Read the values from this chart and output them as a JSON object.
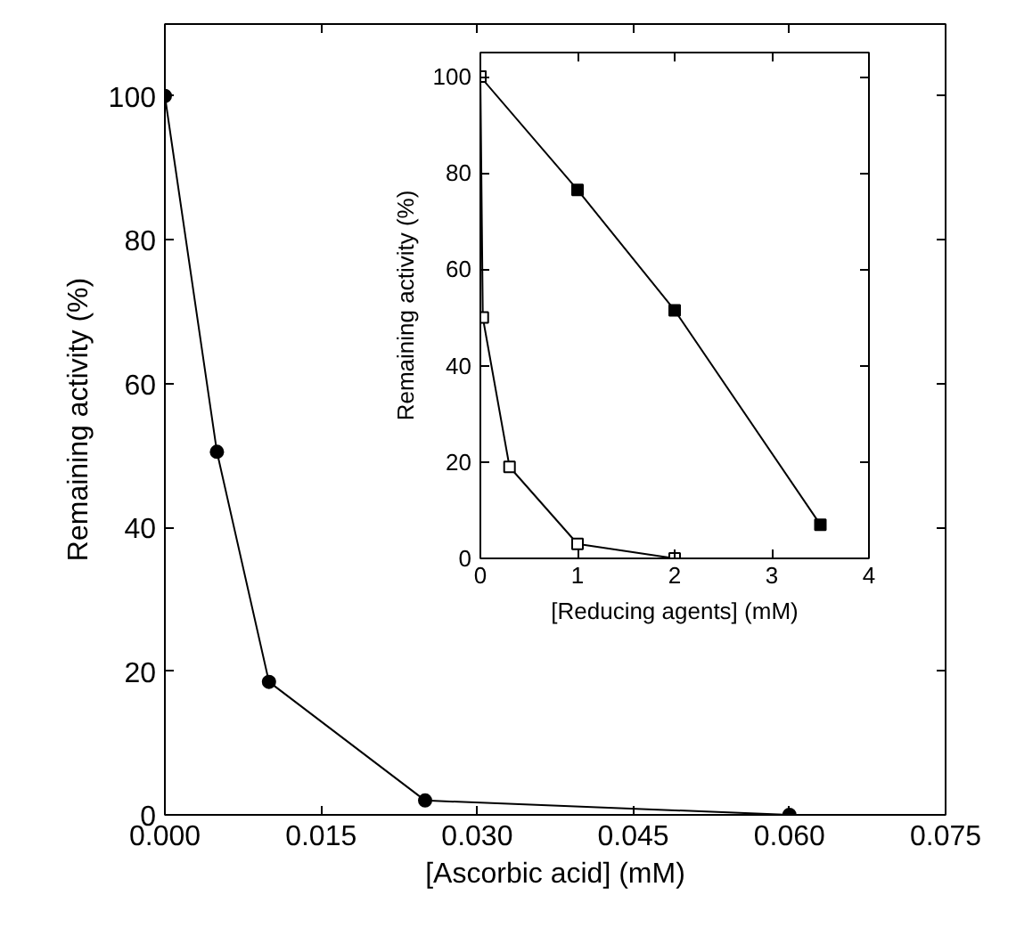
{
  "chart_data": [
    {
      "type": "line",
      "xlabel": "[Ascorbic acid] (mM)",
      "ylabel": "Remaining activity (%)",
      "xlim": [
        0,
        0.075
      ],
      "xticks": [
        {
          "value": 0,
          "label": "0.000"
        },
        {
          "value": 0.015,
          "label": "0.015"
        },
        {
          "value": 0.03,
          "label": "0.030"
        },
        {
          "value": 0.045,
          "label": "0.045"
        },
        {
          "value": 0.06,
          "label": "0.060"
        },
        {
          "value": 0.075,
          "label": "0.075"
        }
      ],
      "ylim": [
        0,
        110
      ],
      "yticks": [
        0,
        20,
        40,
        60,
        80,
        100
      ],
      "marker": "circle",
      "grid": false,
      "x": [
        0,
        0.005,
        0.01,
        0.025,
        0.06
      ],
      "series": [
        {
          "color": "#000000",
          "values": [
            100,
            50.5,
            18.5,
            2,
            0
          ]
        }
      ]
    },
    {
      "type": "line",
      "xlabel": "[Reducing agents] (mM)",
      "ylabel": "Remaining activity (%)",
      "xlim": [
        0,
        4
      ],
      "xticks": [
        0,
        1,
        2,
        3,
        4
      ],
      "ylim": [
        0,
        105
      ],
      "yticks": [
        0,
        20,
        40,
        60,
        80,
        100
      ],
      "marker": "square",
      "grid": false,
      "series": [
        {
          "color": "#000000",
          "x": [
            0,
            1,
            2,
            3.5
          ],
          "values": [
            100,
            76.5,
            51.5,
            7
          ]
        },
        {
          "color": "#ffffff",
          "x": [
            0,
            0.025,
            0.3,
            1,
            2
          ],
          "values": [
            100,
            50,
            19,
            3,
            0
          ]
        }
      ]
    }
  ]
}
